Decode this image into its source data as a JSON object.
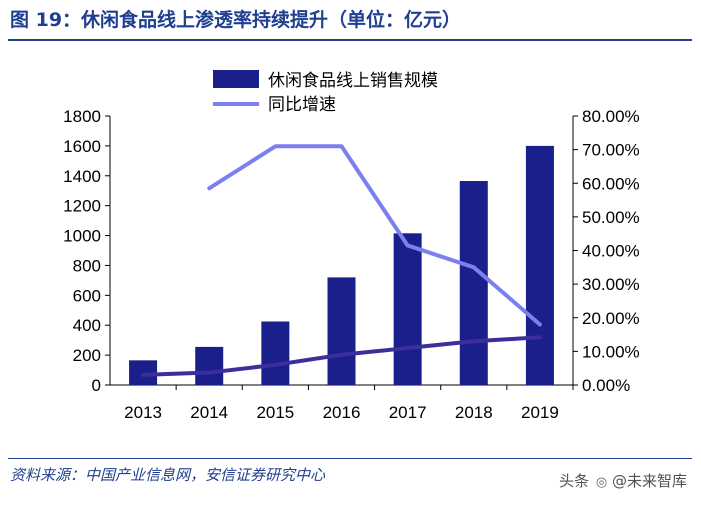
{
  "title": "图 19：休闲食品线上渗透率持续提升（单位：亿元）",
  "source": "资料来源：中国产业信息网，安信证券研究中心",
  "watermark": {
    "platform": "头条",
    "account": "@未来智库"
  },
  "colors": {
    "bar": "#1a1f8c",
    "growth_line": "#7b7ff0",
    "penetration_line": "#3d2f9b",
    "title": "#1f3f8f"
  },
  "chart_data": {
    "type": "bar+line",
    "categories": [
      "2013",
      "2014",
      "2015",
      "2016",
      "2017",
      "2018",
      "2019"
    ],
    "series": [
      {
        "name": "休闲食品线上销售规模",
        "type": "bar",
        "axis": "left",
        "values": [
          165,
          255,
          425,
          720,
          1015,
          1365,
          1600
        ]
      },
      {
        "name": "同比增速",
        "type": "line",
        "axis": "right",
        "values": [
          null,
          0.585,
          0.71,
          0.71,
          0.415,
          0.35,
          0.18
        ]
      },
      {
        "name": "线上渗透率",
        "type": "line",
        "axis": "right",
        "legend": false,
        "values": [
          0.03,
          0.037,
          0.06,
          0.09,
          0.11,
          0.13,
          0.142
        ]
      }
    ],
    "y_left": {
      "min": 0,
      "max": 1800,
      "ticks": [
        "0",
        "200",
        "400",
        "600",
        "800",
        "1000",
        "1200",
        "1400",
        "1600",
        "1800"
      ]
    },
    "y_right": {
      "min": 0,
      "max": 0.8,
      "ticks": [
        "0.00%",
        "10.00%",
        "20.00%",
        "30.00%",
        "40.00%",
        "50.00%",
        "60.00%",
        "70.00%",
        "80.00%"
      ]
    },
    "legend": {
      "position": "top-right",
      "entries": [
        "休闲食品线上销售规模",
        "同比增速"
      ]
    }
  }
}
